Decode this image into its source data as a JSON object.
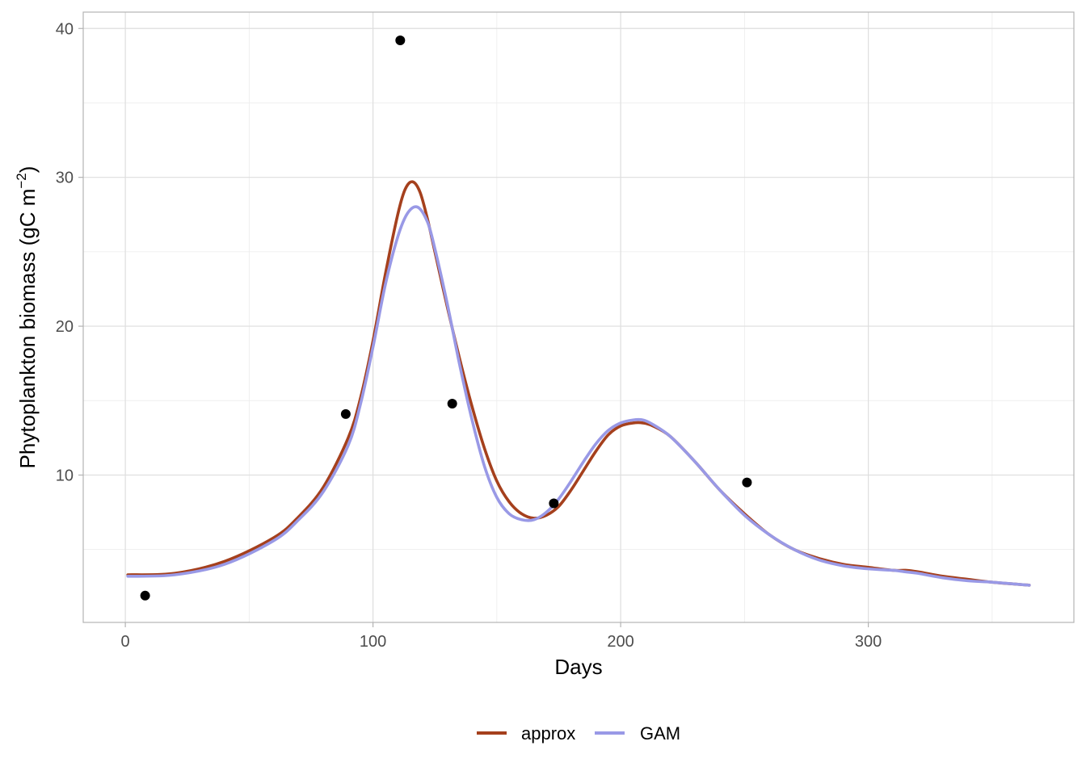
{
  "chart_data": {
    "type": "line",
    "xlabel": "Days",
    "ylabel_main": "Phytoplankton biomass (gC m",
    "ylabel_sup": "−2",
    "ylabel_close": ")",
    "xlim": [
      -17,
      383
    ],
    "ylim": [
      0.1,
      41.1
    ],
    "x_ticks": [
      0,
      100,
      200,
      300
    ],
    "y_ticks": [
      10,
      20,
      30,
      40
    ],
    "x_tick_labels": [
      "0",
      "100",
      "200",
      "300"
    ],
    "y_tick_labels": [
      "10",
      "20",
      "30",
      "40"
    ],
    "grid": true,
    "legend_position": "bottom",
    "points": {
      "x": [
        8,
        89,
        111,
        132,
        173,
        251
      ],
      "y": [
        1.9,
        14.1,
        39.2,
        14.8,
        8.1,
        9.5
      ]
    },
    "series": [
      {
        "name": "approx",
        "color": "#A5401D",
        "x": [
          1,
          20,
          40,
          60,
          70,
          80,
          90,
          95,
          100,
          105,
          110,
          113,
          116,
          119,
          122,
          125,
          130,
          135,
          140,
          145,
          150,
          155,
          160,
          165,
          170,
          175,
          180,
          185,
          190,
          195,
          200,
          205,
          209,
          213,
          220,
          230,
          240,
          250,
          260,
          270,
          280,
          290,
          300,
          310,
          315,
          320,
          330,
          340,
          350,
          365
        ],
        "y": [
          3.3,
          3.4,
          4.2,
          5.8,
          7.2,
          9.2,
          12.5,
          15.2,
          19.0,
          23.5,
          27.5,
          29.2,
          29.7,
          29.0,
          27.2,
          25.0,
          21.3,
          17.8,
          14.6,
          11.8,
          9.6,
          8.2,
          7.4,
          7.1,
          7.3,
          7.9,
          9.0,
          10.3,
          11.6,
          12.7,
          13.3,
          13.5,
          13.5,
          13.3,
          12.6,
          10.9,
          9.0,
          7.4,
          6.0,
          5.0,
          4.4,
          4.0,
          3.8,
          3.6,
          3.6,
          3.5,
          3.2,
          3.0,
          2.8,
          2.6
        ]
      },
      {
        "name": "GAM",
        "color": "#9999E6",
        "x": [
          1,
          20,
          40,
          60,
          70,
          80,
          90,
          95,
          100,
          105,
          110,
          114,
          118,
          122,
          125,
          130,
          135,
          140,
          145,
          150,
          155,
          160,
          165,
          170,
          175,
          180,
          185,
          190,
          195,
          200,
          205,
          209,
          213,
          220,
          230,
          240,
          250,
          260,
          270,
          280,
          290,
          300,
          310,
          315,
          320,
          330,
          340,
          350,
          365
        ],
        "y": [
          3.2,
          3.3,
          4.0,
          5.6,
          7.0,
          8.9,
          12.0,
          14.8,
          18.6,
          22.8,
          26.0,
          27.6,
          28.0,
          27.0,
          25.2,
          21.5,
          17.4,
          13.7,
          10.6,
          8.5,
          7.4,
          7.0,
          7.0,
          7.5,
          8.4,
          9.6,
          10.9,
          12.1,
          13.0,
          13.5,
          13.7,
          13.7,
          13.4,
          12.6,
          10.9,
          9.0,
          7.3,
          6.0,
          5.0,
          4.3,
          3.9,
          3.7,
          3.6,
          3.5,
          3.4,
          3.1,
          2.9,
          2.8,
          2.6
        ]
      }
    ]
  }
}
